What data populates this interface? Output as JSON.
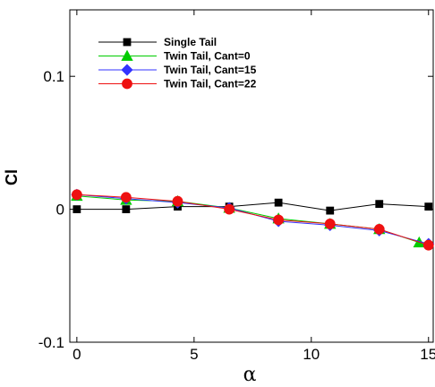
{
  "chart_data": {
    "type": "line",
    "xlabel": "α",
    "ylabel": "Cl",
    "xlim": [
      -0.3,
      15.2
    ],
    "ylim": [
      -0.1,
      0.15
    ],
    "xticks": [
      0,
      5,
      10,
      15
    ],
    "xtick_labels": [
      "0",
      "5",
      "10",
      "15"
    ],
    "yticks": [
      -0.1,
      0,
      0.1
    ],
    "ytick_labels": [
      "-0.1",
      "0",
      "0.1"
    ],
    "grid": false,
    "legend_position": "top-left",
    "series": [
      {
        "name": "Single Tail",
        "color": "#000000",
        "marker": "square",
        "x": [
          0,
          2.1,
          4.3,
          6.5,
          8.6,
          10.8,
          12.9,
          15.0
        ],
        "y": [
          0.0,
          0.0,
          0.002,
          0.002,
          0.005,
          -0.001,
          0.004,
          0.002
        ]
      },
      {
        "name": "Twin Tail, Cant=0",
        "color": "#00cc00",
        "marker": "triangle",
        "x": [
          0,
          2.1,
          4.3,
          6.5,
          8.6,
          10.8,
          12.9,
          14.6
        ],
        "y": [
          0.01,
          0.007,
          0.006,
          0.001,
          -0.007,
          -0.011,
          -0.015,
          -0.025
        ]
      },
      {
        "name": "Twin Tail, Cant=15",
        "color": "#3333ff",
        "marker": "diamond",
        "x": [
          0,
          2.1,
          4.3,
          6.5,
          8.6,
          10.8,
          12.9,
          15.0
        ],
        "y": [
          0.011,
          0.008,
          0.005,
          0.001,
          -0.009,
          -0.012,
          -0.016,
          -0.026
        ]
      },
      {
        "name": "Twin Tail, Cant=22",
        "color": "#ee1111",
        "marker": "circle",
        "x": [
          0,
          2.1,
          4.3,
          6.5,
          8.6,
          10.8,
          12.9,
          15.0
        ],
        "y": [
          0.011,
          0.009,
          0.006,
          0.0,
          -0.008,
          -0.011,
          -0.015,
          -0.027
        ]
      }
    ]
  }
}
